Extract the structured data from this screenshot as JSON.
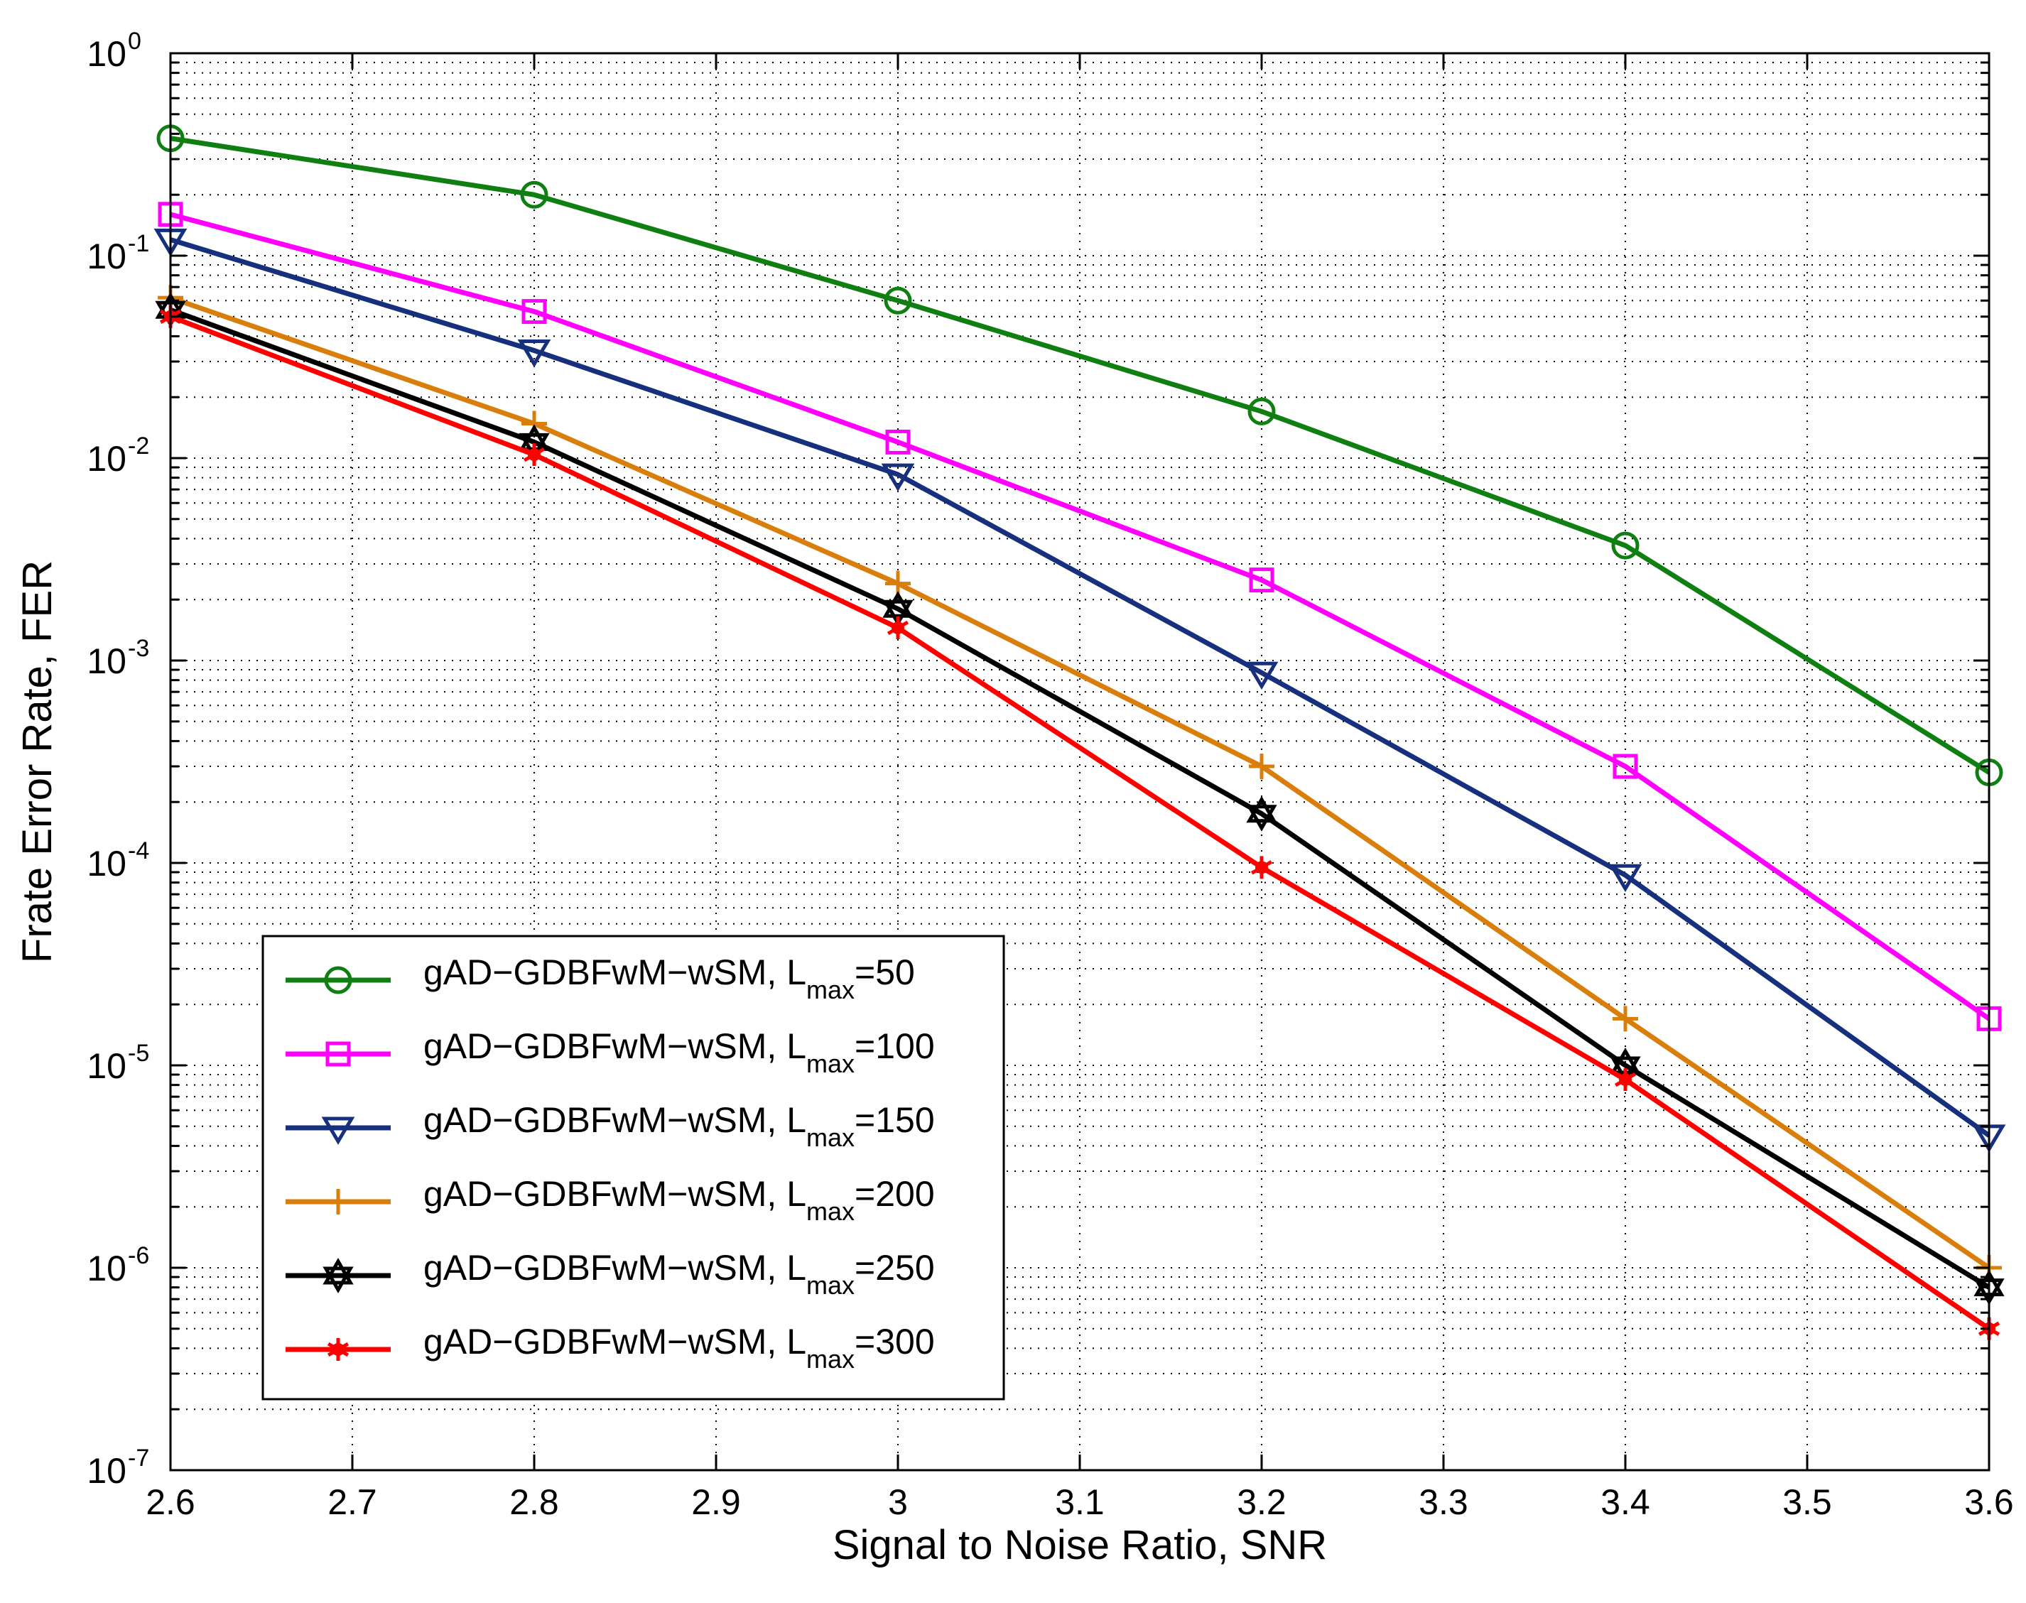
{
  "chart_data": {
    "type": "line",
    "title": "",
    "xlabel": "Signal to Noise Ratio, SNR",
    "ylabel": "Frate Error Rate, FER",
    "x": [
      2.6,
      2.8,
      3.0,
      3.2,
      3.4,
      3.6
    ],
    "xlim": [
      2.6,
      3.6
    ],
    "ylim": [
      1e-07,
      1
    ],
    "yscale": "log",
    "grid": true,
    "legend_position": "bottom-left",
    "x_ticks": [
      {
        "value": 2.6,
        "label": "2.6"
      },
      {
        "value": 2.7,
        "label": "2.7"
      },
      {
        "value": 2.8,
        "label": "2.8"
      },
      {
        "value": 2.9,
        "label": "2.9"
      },
      {
        "value": 3.0,
        "label": "3"
      },
      {
        "value": 3.1,
        "label": "3.1"
      },
      {
        "value": 3.2,
        "label": "3.2"
      },
      {
        "value": 3.3,
        "label": "3.3"
      },
      {
        "value": 3.4,
        "label": "3.4"
      },
      {
        "value": 3.5,
        "label": "3.5"
      },
      {
        "value": 3.6,
        "label": "3.6"
      }
    ],
    "y_ticks": [
      {
        "exp": 0,
        "base": "10",
        "sup": "0"
      },
      {
        "exp": -1,
        "base": "10",
        "sup": "-1"
      },
      {
        "exp": -2,
        "base": "10",
        "sup": "-2"
      },
      {
        "exp": -3,
        "base": "10",
        "sup": "-3"
      },
      {
        "exp": -4,
        "base": "10",
        "sup": "-4"
      },
      {
        "exp": -5,
        "base": "10",
        "sup": "-5"
      },
      {
        "exp": -6,
        "base": "10",
        "sup": "-6"
      },
      {
        "exp": -7,
        "base": "10",
        "sup": "-7"
      }
    ],
    "series": [
      {
        "name": "gAD−GDBFwM−wSM, L",
        "sub": "max",
        "suffix": "=50",
        "color": "#0f7f12",
        "marker": "circle",
        "values": [
          0.38,
          0.2,
          0.06,
          0.017,
          0.0037,
          0.00028
        ]
      },
      {
        "name": "gAD−GDBFwM−wSM, L",
        "sub": "max",
        "suffix": "=100",
        "color": "#ff00ff",
        "marker": "square",
        "values": [
          0.16,
          0.053,
          0.012,
          0.0025,
          0.0003,
          1.7e-05
        ]
      },
      {
        "name": "gAD−GDBFwM−wSM, L",
        "sub": "max",
        "suffix": "=150",
        "color": "#16307e",
        "marker": "triangle-down",
        "values": [
          0.12,
          0.034,
          0.0083,
          0.00087,
          8.7e-05,
          4.5e-06
        ]
      },
      {
        "name": "gAD−GDBFwM−wSM, L",
        "sub": "max",
        "suffix": "=200",
        "color": "#d97e0b",
        "marker": "plus",
        "values": [
          0.062,
          0.0148,
          0.0024,
          0.0003,
          1.7e-05,
          1e-06
        ]
      },
      {
        "name": "gAD−GDBFwM−wSM, L",
        "sub": "max",
        "suffix": "=250",
        "color": "#000000",
        "marker": "hexagram",
        "values": [
          0.054,
          0.012,
          0.0018,
          0.000175,
          1e-05,
          8e-07
        ]
      },
      {
        "name": "gAD−GDBFwM−wSM, L",
        "sub": "max",
        "suffix": "=300",
        "color": "#ff0000",
        "marker": "asterisk",
        "values": [
          0.05,
          0.0104,
          0.00145,
          9.5e-05,
          8.5e-06,
          5e-07
        ]
      }
    ]
  }
}
